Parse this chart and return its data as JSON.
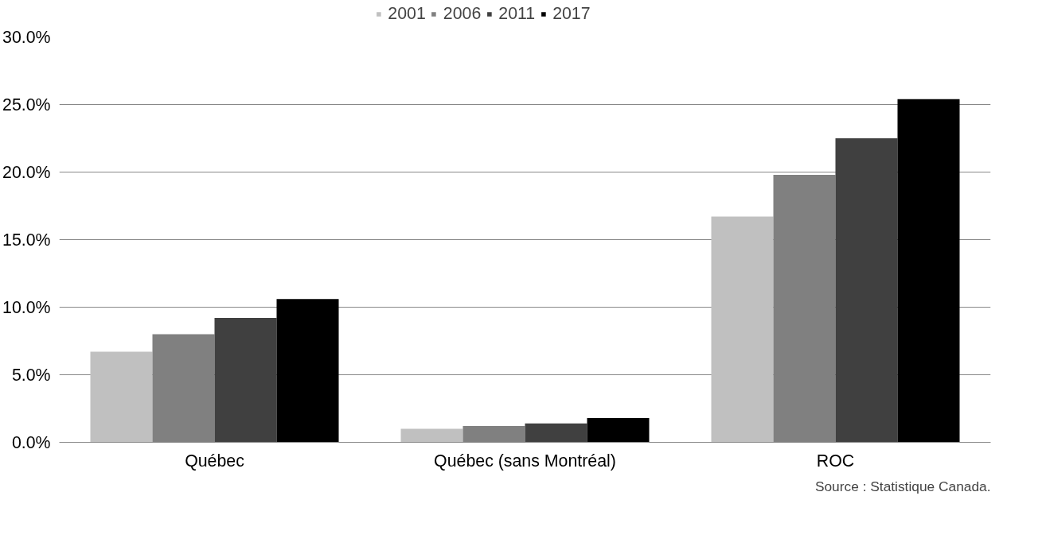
{
  "chart_data": {
    "type": "bar",
    "categories": [
      "Québec",
      "Québec (sans Montréal)",
      "ROC"
    ],
    "series": [
      {
        "name": "2001",
        "color": "#c0c0c0",
        "values": [
          6.7,
          1.0,
          16.7
        ]
      },
      {
        "name": "2006",
        "color": "#808080",
        "values": [
          8.0,
          1.2,
          19.8
        ]
      },
      {
        "name": "2011",
        "color": "#404040",
        "values": [
          9.2,
          1.4,
          22.5
        ]
      },
      {
        "name": "2017",
        "color": "#000000",
        "values": [
          10.6,
          1.8,
          25.4
        ]
      }
    ],
    "ylim": [
      0,
      30
    ],
    "yticks": [
      {
        "value": 0,
        "label": "0.0%"
      },
      {
        "value": 5,
        "label": "5.0%"
      },
      {
        "value": 10,
        "label": "10.0%"
      },
      {
        "value": 15,
        "label": "15.0%"
      },
      {
        "value": 20,
        "label": "20.0%"
      },
      {
        "value": 25,
        "label": "25.0%"
      },
      {
        "value": 30,
        "label": "30.0%"
      }
    ],
    "grid": "y",
    "legend": "top",
    "annotations": [
      "Source : Statistique Canada."
    ]
  }
}
